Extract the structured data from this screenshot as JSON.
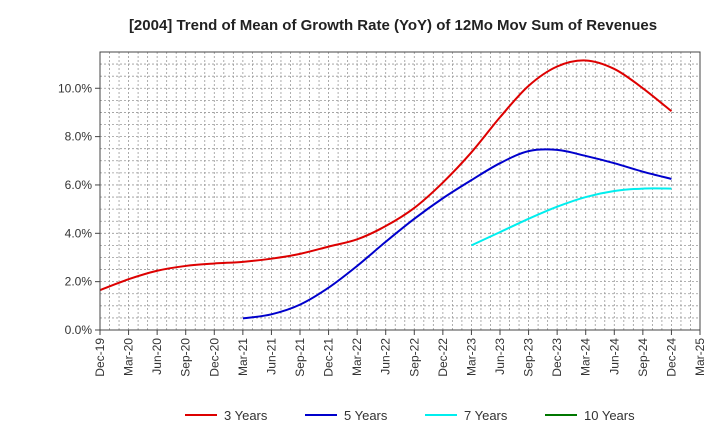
{
  "chart_data": {
    "type": "line",
    "title": "[2004]  Trend of Mean of Growth Rate (YoY) of 12Mo Mov Sum of Revenues",
    "xlabel": "",
    "ylabel": "",
    "x_tick_labels": [
      "Dec-19",
      "Mar-20",
      "Jun-20",
      "Sep-20",
      "Dec-20",
      "Mar-21",
      "Jun-21",
      "Sep-21",
      "Dec-21",
      "Mar-22",
      "Jun-22",
      "Sep-22",
      "Dec-22",
      "Mar-23",
      "Jun-23",
      "Sep-23",
      "Dec-23",
      "Mar-24",
      "Jun-24",
      "Sep-24",
      "Dec-24",
      "Mar-25"
    ],
    "y_tick_labels": [
      "0.0%",
      "2.0%",
      "4.0%",
      "6.0%",
      "8.0%",
      "10.0%"
    ],
    "ylim": [
      0,
      11.5
    ],
    "y_ticks": [
      0,
      2,
      4,
      6,
      8,
      10
    ],
    "grid": true,
    "legend_position": "bottom",
    "series": [
      {
        "name": "3 Years",
        "color": "#dd0000",
        "points": [
          [
            0,
            1.65
          ],
          [
            1,
            2.1
          ],
          [
            2,
            2.45
          ],
          [
            3,
            2.65
          ],
          [
            4,
            2.75
          ],
          [
            5,
            2.82
          ],
          [
            6,
            2.95
          ],
          [
            7,
            3.15
          ],
          [
            8,
            3.45
          ],
          [
            9,
            3.75
          ],
          [
            10,
            4.3
          ],
          [
            11,
            5.05
          ],
          [
            12,
            6.1
          ],
          [
            13,
            7.35
          ],
          [
            14,
            8.8
          ],
          [
            15,
            10.1
          ],
          [
            16,
            10.9
          ],
          [
            17,
            11.15
          ],
          [
            18,
            10.8
          ],
          [
            19,
            10.0
          ],
          [
            20,
            9.05
          ]
        ]
      },
      {
        "name": "5 Years",
        "color": "#0000cc",
        "points": [
          [
            5,
            0.48
          ],
          [
            6,
            0.65
          ],
          [
            7,
            1.05
          ],
          [
            8,
            1.75
          ],
          [
            9,
            2.65
          ],
          [
            10,
            3.65
          ],
          [
            11,
            4.6
          ],
          [
            12,
            5.45
          ],
          [
            13,
            6.2
          ],
          [
            14,
            6.9
          ],
          [
            15,
            7.4
          ],
          [
            16,
            7.45
          ],
          [
            17,
            7.2
          ],
          [
            18,
            6.9
          ],
          [
            19,
            6.55
          ],
          [
            20,
            6.25
          ]
        ]
      },
      {
        "name": "7 Years",
        "color": "#00eeee",
        "points": [
          [
            13,
            3.5
          ],
          [
            14,
            4.05
          ],
          [
            15,
            4.6
          ],
          [
            16,
            5.1
          ],
          [
            17,
            5.5
          ],
          [
            18,
            5.75
          ],
          [
            19,
            5.85
          ],
          [
            20,
            5.85
          ]
        ]
      },
      {
        "name": "10 Years",
        "color": "#007700",
        "points": []
      }
    ]
  }
}
